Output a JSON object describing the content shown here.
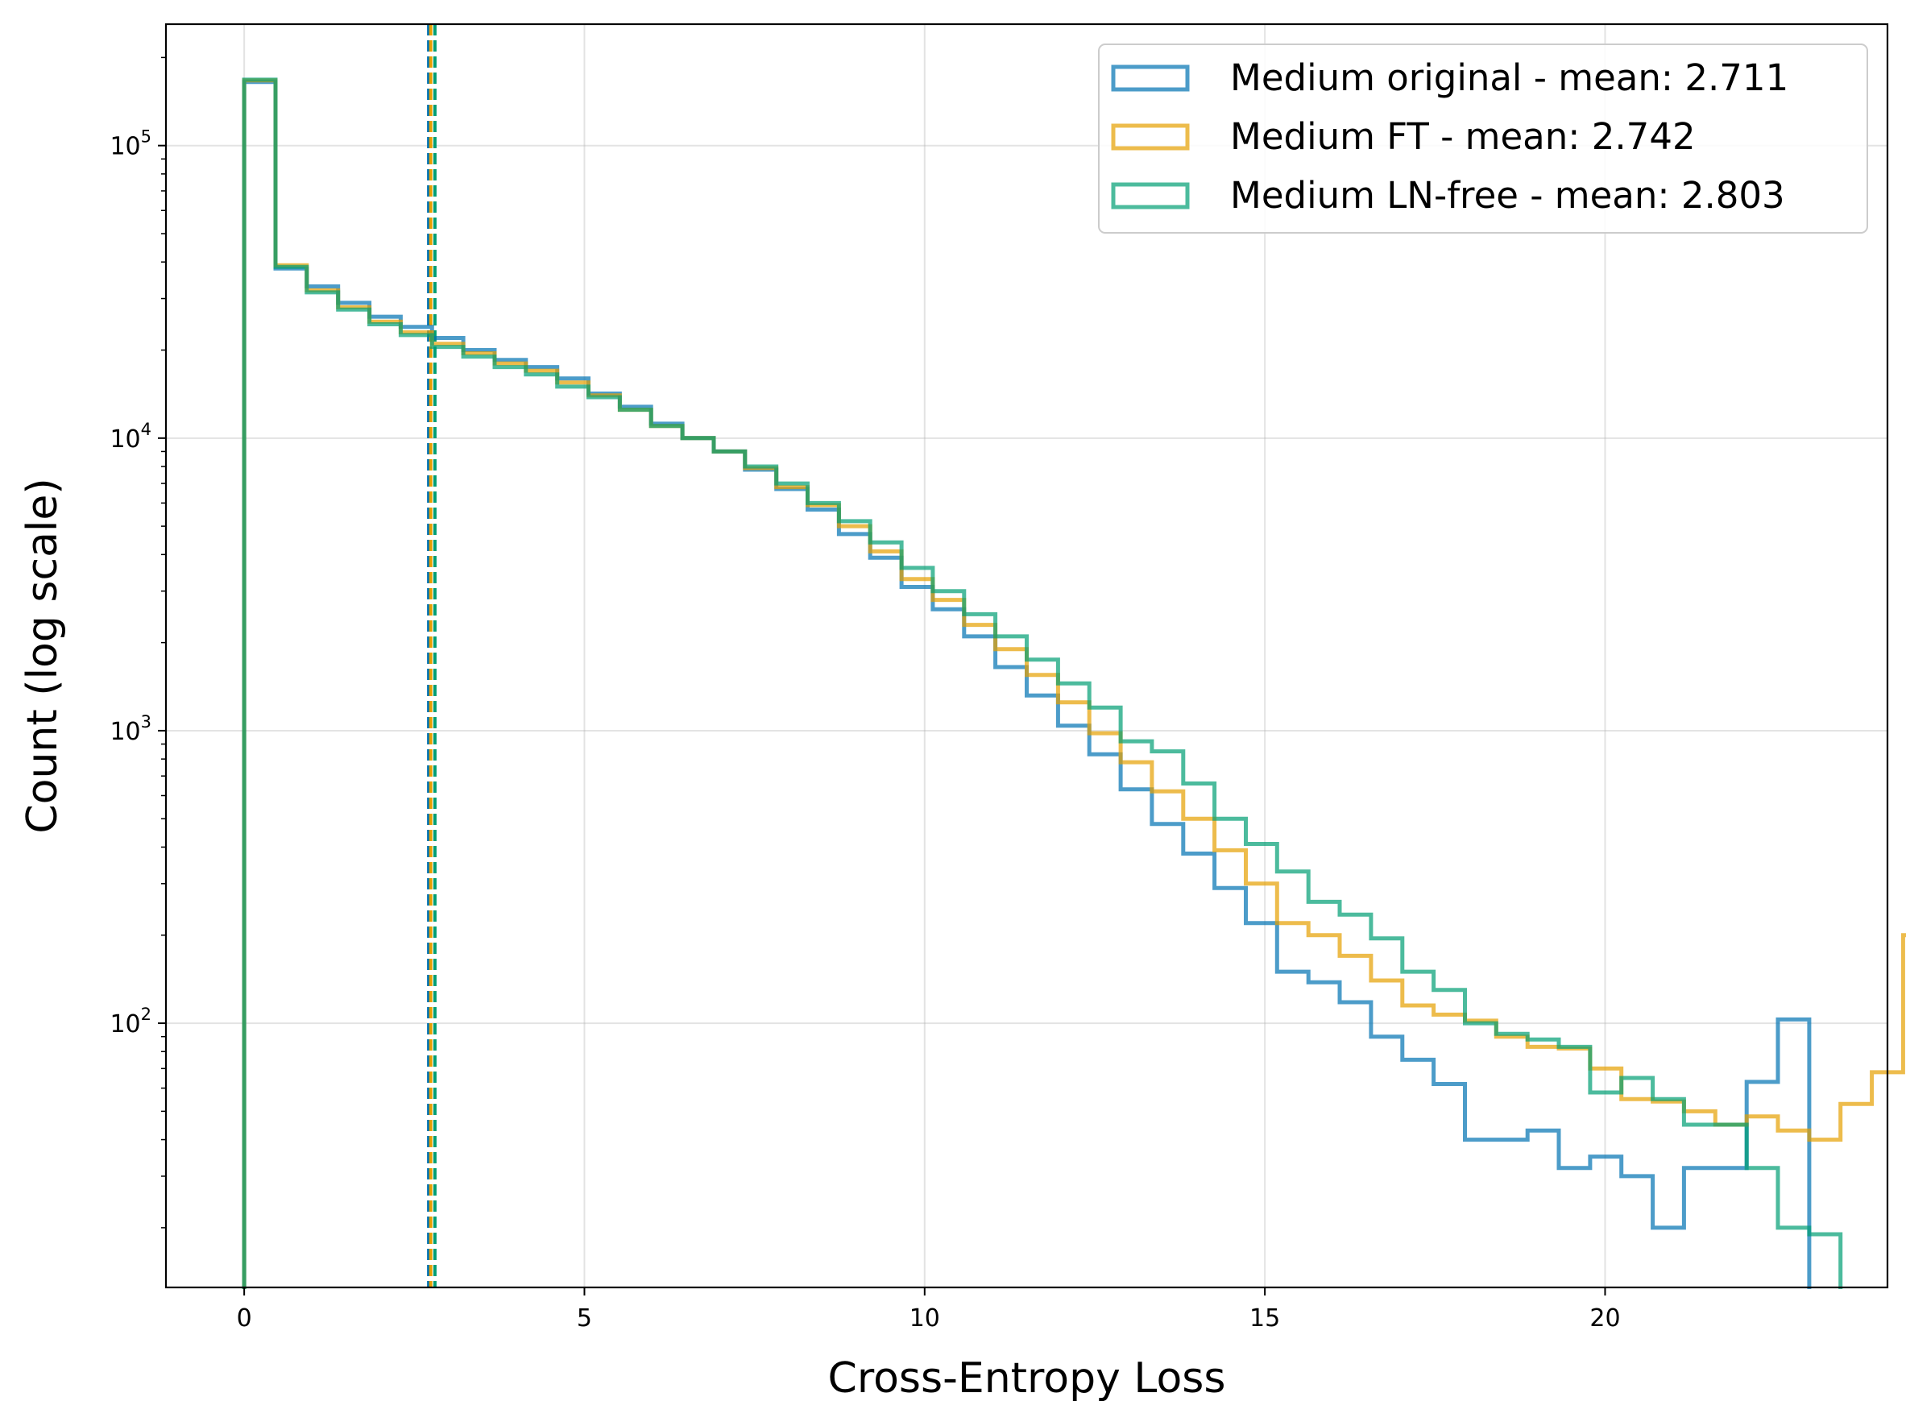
{
  "chart_data": {
    "type": "histogram",
    "xlabel": "Cross-Entropy Loss",
    "ylabel": "Count (log scale)",
    "xlim": [
      -1.15,
      24.15
    ],
    "ylim": [
      12.5,
      260000
    ],
    "yscale": "log",
    "grid": true,
    "legend_position": "top-right",
    "x_ticks": [
      {
        "value": 0,
        "label": "0"
      },
      {
        "value": 5,
        "label": "5"
      },
      {
        "value": 10,
        "label": "10"
      },
      {
        "value": 15,
        "label": "15"
      },
      {
        "value": 20,
        "label": "20"
      }
    ],
    "y_ticks": [
      {
        "value": 100,
        "base": "10",
        "exp": "2"
      },
      {
        "value": 1000,
        "base": "10",
        "exp": "3"
      },
      {
        "value": 10000,
        "base": "10",
        "exp": "4"
      },
      {
        "value": 100000,
        "base": "10",
        "exp": "5"
      }
    ],
    "bin_width": 0.46,
    "bin_start": 0,
    "series": [
      {
        "name": "Medium original - mean: 2.711",
        "color": "#0072b2",
        "mean": 2.711,
        "counts": [
          165000,
          38000,
          33000,
          29000,
          26000,
          24000,
          22000,
          20000,
          18500,
          17500,
          16000,
          14200,
          12800,
          11200,
          10000,
          9000,
          7800,
          6700,
          5700,
          4700,
          3900,
          3100,
          2600,
          2100,
          1650,
          1320,
          1040,
          830,
          630,
          480,
          380,
          290,
          220,
          150,
          138,
          118,
          90,
          75,
          62,
          40,
          40,
          43,
          32,
          35,
          30,
          20,
          32,
          32,
          63,
          103
        ]
      },
      {
        "name": "Medium FT - mean: 2.742",
        "color": "#e69f00",
        "mean": 2.742,
        "counts": [
          167000,
          39000,
          32000,
          28000,
          25000,
          23000,
          21000,
          19500,
          18000,
          17000,
          15500,
          14000,
          12500,
          11000,
          10000,
          9000,
          7900,
          6800,
          5900,
          5000,
          4100,
          3300,
          2800,
          2300,
          1900,
          1550,
          1250,
          980,
          780,
          620,
          500,
          390,
          300,
          220,
          200,
          170,
          140,
          115,
          107,
          102,
          90,
          83,
          82,
          70,
          55,
          54,
          50,
          45,
          48,
          43,
          40,
          53,
          68,
          200
        ]
      },
      {
        "name": "Medium LN-free - mean: 2.803",
        "color": "#009e73",
        "mean": 2.803,
        "counts": [
          168000,
          38500,
          31500,
          27500,
          24500,
          22500,
          20500,
          19000,
          17500,
          16500,
          15000,
          13800,
          12500,
          11000,
          10000,
          9000,
          8000,
          7000,
          6000,
          5200,
          4400,
          3600,
          3000,
          2500,
          2100,
          1750,
          1450,
          1200,
          920,
          850,
          660,
          500,
          410,
          330,
          260,
          235,
          195,
          150,
          130,
          100,
          92,
          88,
          83,
          58,
          65,
          55,
          45,
          45,
          32,
          20,
          19
        ]
      }
    ]
  }
}
